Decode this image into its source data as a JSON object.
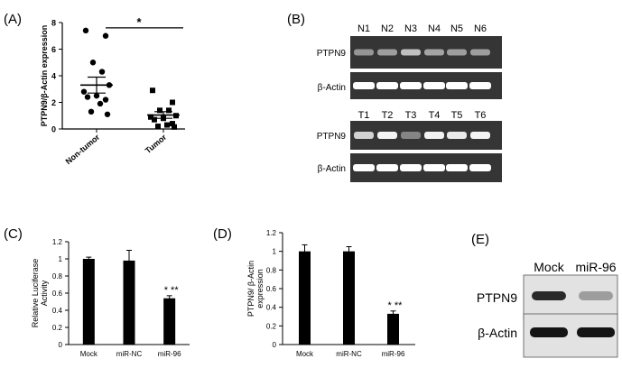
{
  "panels": {
    "A": {
      "label": "(A)"
    },
    "B": {
      "label": "(B)"
    },
    "C": {
      "label": "(C)"
    },
    "D": {
      "label": "(D)"
    },
    "E": {
      "label": "(E)"
    }
  },
  "gel": {
    "normal_lanes": [
      "N1",
      "N2",
      "N3",
      "N4",
      "N5",
      "N6"
    ],
    "tumor_lanes": [
      "T1",
      "T2",
      "T3",
      "T4",
      "T5",
      "T6"
    ],
    "row_labels": {
      "ptpn9": "PTPN9",
      "actin": "β-Actin"
    },
    "normal_ptpn9_intensity": [
      0.45,
      0.5,
      0.7,
      0.55,
      0.5,
      0.5
    ],
    "tumor_ptpn9_intensity": [
      0.8,
      0.95,
      0.35,
      0.95,
      0.9,
      0.95
    ]
  },
  "western": {
    "lanes": [
      "Mock",
      "miR-96"
    ],
    "row_labels": {
      "ptpn9": "PTPN9",
      "actin": "β-Actin"
    },
    "ptpn9_intensity": [
      0.9,
      0.35
    ],
    "actin_intensity": [
      1.0,
      1.0
    ]
  },
  "chart_data": [
    {
      "type": "scatter",
      "panel": "A",
      "ylabel": "PTPN9/β-Actin expression",
      "categories": [
        "Non-tumor",
        "Tumor"
      ],
      "ylim": [
        0,
        8
      ],
      "yticks": [
        "0",
        "2",
        "4",
        "6",
        "8"
      ],
      "series": [
        {
          "values": [
            7.4,
            7.0,
            5.0,
            4.3,
            3.3,
            2.8,
            2.5,
            2.4,
            2.2,
            1.9,
            1.3,
            1.1
          ],
          "mean": 3.3,
          "sem": 0.6,
          "marker": "circle"
        },
        {
          "values": [
            2.9,
            2.0,
            1.4,
            1.4,
            1.0,
            0.9,
            0.8,
            0.7,
            0.4,
            0.3,
            0.2,
            0.15
          ],
          "mean": 1.05,
          "sem": 0.25,
          "marker": "square"
        }
      ],
      "annotations": [
        {
          "text": "*"
        }
      ]
    },
    {
      "type": "bar",
      "panel": "C",
      "ylabel": "Relative Luciferase Activity",
      "categories": [
        "Mock",
        "miR-NC",
        "miR-96"
      ],
      "values": [
        1.0,
        0.98,
        0.54
      ],
      "errors": [
        0.02,
        0.12,
        0.03
      ],
      "ylim": [
        0,
        1.2
      ],
      "yticks": [
        "0",
        "0.2",
        "0.4",
        "0.6",
        "0.8",
        "1",
        "1.2"
      ],
      "annotations": [
        {
          "text": "* **"
        }
      ]
    },
    {
      "type": "bar",
      "panel": "D",
      "ylabel": "PTPN9/ β-Actin expression",
      "categories": [
        "Mock",
        "miR-NC",
        "miR-96"
      ],
      "values": [
        1.0,
        1.0,
        0.33
      ],
      "errors": [
        0.07,
        0.05,
        0.03
      ],
      "ylim": [
        0,
        1.2
      ],
      "yticks": [
        "0",
        "0.2",
        "0.4",
        "0.6",
        "0.8",
        "1",
        "1.2"
      ],
      "annotations": [
        {
          "text": "* **"
        }
      ]
    }
  ]
}
